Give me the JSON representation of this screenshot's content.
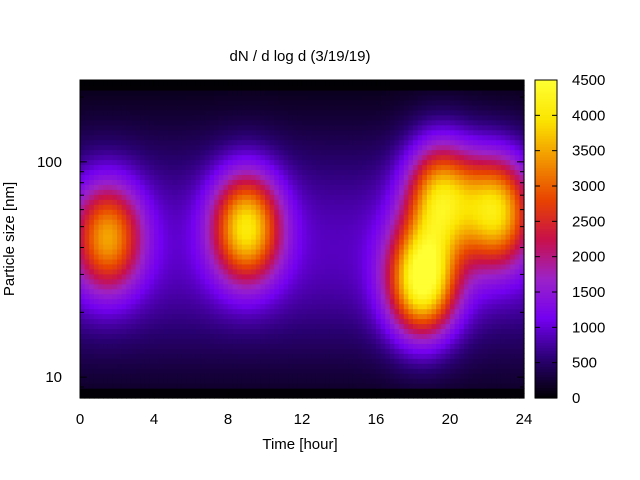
{
  "chart_data": {
    "type": "heatmap",
    "title": "dN / d log d (3/19/19)",
    "xlabel": "Time [hour]",
    "ylabel": "Particle size [nm]",
    "xlim": [
      0,
      24
    ],
    "x_ticks": [
      "0",
      "4",
      "8",
      "12",
      "16",
      "20",
      "24"
    ],
    "ylim": [
      8,
      240
    ],
    "y_scale": "log",
    "y_ticks": [
      "10",
      "100"
    ],
    "colorbar": {
      "range": [
        0,
        4500
      ],
      "ticks": [
        "0",
        "500",
        "1000",
        "1500",
        "2000",
        "2500",
        "3000",
        "3500",
        "4000",
        "4500"
      ],
      "colormap": [
        "#000000",
        "#2a0072",
        "#7300f0",
        "#9b22c8",
        "#c8104a",
        "#e84400",
        "#f29400",
        "#fbe400",
        "#ffff33"
      ]
    },
    "background_color": "#ffffff",
    "z_events": [
      {
        "time": 1.5,
        "diameter": 45,
        "peak": 2600
      },
      {
        "time": 9.0,
        "diameter": 50,
        "peak": 3200
      },
      {
        "time": 18.5,
        "diameter": 28,
        "peak": 3800
      },
      {
        "time": 19.5,
        "diameter": 70,
        "peak": 3000
      },
      {
        "time": 22.5,
        "diameter": 60,
        "peak": 3100
      }
    ]
  }
}
